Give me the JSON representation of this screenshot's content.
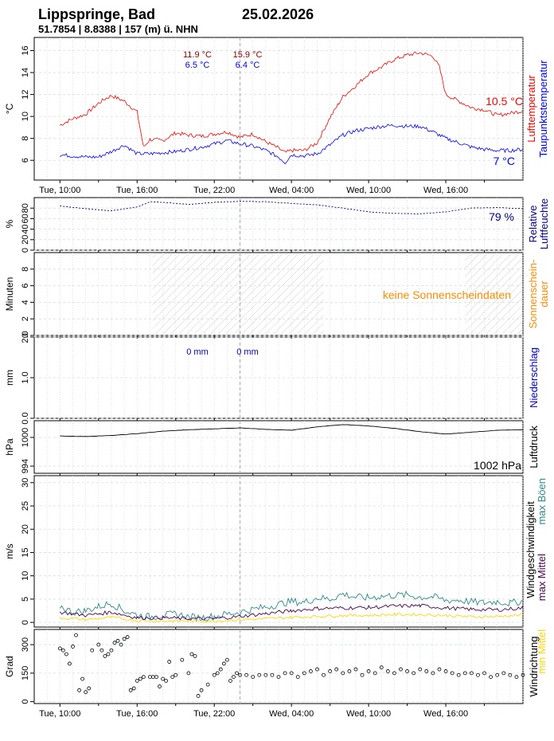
{
  "header": {
    "station": "Lippspringe, Bad",
    "date": "25.02.2026",
    "coords": "51.7854 | 8.8388 | 157 (m) ü. NHN"
  },
  "colors": {
    "temp": "#ff0000",
    "dew": "#0000ff",
    "humidity": "#00008b",
    "sunshine": "#ff8c00",
    "precip": "#0000cd",
    "pressure": "#000000",
    "gust": "#2e8b8b",
    "maxmean": "#4b0050",
    "minmean": "#ffd700",
    "darkred": "#8b0000"
  },
  "x_axis": {
    "ticks": [
      {
        "hour": 0,
        "label": "Tue, 10:00"
      },
      {
        "hour": 6,
        "label": "Tue, 16:00"
      },
      {
        "hour": 12,
        "label": "Tue, 22:00"
      },
      {
        "hour": 18,
        "label": "Wed, 04:00"
      },
      {
        "hour": 24,
        "label": "Wed, 10:00"
      },
      {
        "hour": 30,
        "label": "Wed, 16:00"
      }
    ],
    "hour_range": [
      -2,
      36
    ],
    "midnight_hour": 14
  },
  "chart_data": [
    {
      "type": "line",
      "panel": "temperature",
      "ylabel": "°C",
      "right_labels": [
        "Lufttemperatur",
        "Taupunktstemperatur"
      ],
      "ylim": [
        4.2,
        17.2
      ],
      "yticks": [
        6,
        8,
        10,
        12,
        14,
        16
      ],
      "series": [
        {
          "name": "Lufttemperatur",
          "x": [
            0,
            1,
            2,
            3,
            3.5,
            4,
            5,
            6,
            6.5,
            7,
            8,
            9,
            10,
            11,
            12,
            13,
            14,
            15,
            16,
            17,
            17.5,
            18,
            19,
            20,
            21,
            22,
            23,
            24,
            25,
            26,
            27,
            28,
            29,
            29.5,
            30,
            31,
            32,
            33,
            34,
            35,
            36
          ],
          "values": [
            9.2,
            9.8,
            10.2,
            11.2,
            11.6,
            11.9,
            11.4,
            10.4,
            7.2,
            7.9,
            7.8,
            8.5,
            8.3,
            8.2,
            8.4,
            8.6,
            8.1,
            8.4,
            7.7,
            7.1,
            6.7,
            6.9,
            6.9,
            7.6,
            9.9,
            11.8,
            12.8,
            13.9,
            14.5,
            15.2,
            15.6,
            15.8,
            15.5,
            14.5,
            12.0,
            11.4,
            10.8,
            10.6,
            10.1,
            10.3,
            10.5
          ]
        },
        {
          "name": "Taupunktstemperatur",
          "x": [
            0,
            1,
            2,
            3,
            4,
            5,
            6,
            7,
            8,
            9,
            10,
            11,
            12,
            13,
            14,
            15,
            16,
            17,
            17.5,
            18,
            19,
            20,
            21,
            22,
            23,
            24,
            25,
            26,
            27,
            28,
            29,
            30,
            31,
            32,
            33,
            34,
            35,
            36
          ],
          "values": [
            6.5,
            6.4,
            6.3,
            6.3,
            6.8,
            7.4,
            6.6,
            6.6,
            6.7,
            6.8,
            7.0,
            7.2,
            7.5,
            7.8,
            7.5,
            7.3,
            6.9,
            6.3,
            5.8,
            6.5,
            6.4,
            6.6,
            7.4,
            8.3,
            8.7,
            8.9,
            9.1,
            9.2,
            9.1,
            9.1,
            8.6,
            8.0,
            7.6,
            7.2,
            7.0,
            6.9,
            6.9,
            7.0
          ]
        }
      ],
      "annotations": [
        {
          "text": "11.9 °C",
          "color": "darkred"
        },
        {
          "text": "6.5 °C",
          "color": "dew"
        },
        {
          "text": "15.9 °C",
          "color": "darkred"
        },
        {
          "text": "6.4 °C",
          "color": "dew"
        }
      ],
      "last_values": [
        {
          "text": "10.5 °C",
          "color": "temp"
        },
        {
          "text": "7 °C",
          "color": "dew"
        }
      ]
    },
    {
      "type": "line",
      "panel": "humidity",
      "ylabel": "%",
      "right_labels": [
        "Relative",
        "Luftfeuchte"
      ],
      "ylim": [
        0,
        100
      ],
      "yticks": [
        0,
        20,
        40,
        60,
        80
      ],
      "series": [
        {
          "name": "Relative Luftfeuchte",
          "x": [
            0,
            2,
            4,
            6,
            7,
            8,
            10,
            12,
            14,
            16,
            18,
            20,
            22,
            24,
            26,
            28,
            30,
            32,
            34,
            36
          ],
          "values": [
            84,
            79,
            75,
            82,
            92,
            91,
            87,
            91,
            93,
            92,
            89,
            86,
            80,
            73,
            70,
            69,
            73,
            80,
            81,
            79
          ]
        }
      ],
      "last_value": "79 %"
    },
    {
      "type": "bar",
      "panel": "sunshine",
      "ylabel": "Minuten",
      "right_labels": [
        "Sonnenschein-",
        "dauer"
      ],
      "ylim": [
        0,
        10
      ],
      "yticks": [
        0,
        2,
        4,
        6,
        8
      ],
      "night_ranges": [
        [
          7.2,
          20.5
        ],
        [
          31.5,
          37
        ]
      ],
      "note": "keine Sonnenscheindaten"
    },
    {
      "type": "bar",
      "panel": "precipitation",
      "ylabel": "mm",
      "right_labels": [
        "Niederschlag"
      ],
      "ylim": [
        0,
        2
      ],
      "yticks": [
        0.0,
        1.0,
        2.0
      ],
      "annotations": [
        {
          "text": "0 mm",
          "color": "precip"
        },
        {
          "text": "0 mm",
          "color": "precip"
        }
      ]
    },
    {
      "type": "line",
      "panel": "pressure",
      "ylabel": "hPa",
      "right_labels": [
        "Luftdruck"
      ],
      "ylim": [
        992.5,
        1003.5
      ],
      "yticks": [
        994,
        1000
      ],
      "series": [
        {
          "name": "Luftdruck",
          "x": [
            0,
            2,
            4,
            6,
            8,
            10,
            12,
            14,
            16,
            18,
            20,
            22,
            24,
            26,
            28,
            30,
            32,
            34,
            36
          ],
          "values": [
            1000.3,
            1000.2,
            1000.4,
            1000.8,
            1001.3,
            1001.6,
            1001.8,
            1002.0,
            1001.7,
            1001.5,
            1002.2,
            1002.7,
            1002.4,
            1001.9,
            1001.2,
            1000.7,
            1001.1,
            1001.5,
            1001.6
          ]
        }
      ],
      "last_value": "1002 hPa"
    },
    {
      "type": "line",
      "panel": "wind",
      "ylabel": "m/s",
      "right_labels": [
        "Windgeschwindigkeit",
        "max Mittel",
        "max Böen",
        "min Mittel"
      ],
      "ylim": [
        -1,
        31.5
      ],
      "yticks": [
        0,
        5,
        10,
        15,
        20,
        25,
        30
      ],
      "series": [
        {
          "name": "max Böen",
          "x": [
            0,
            1,
            2,
            3,
            4,
            5,
            6,
            7,
            8,
            9,
            10,
            11,
            12,
            13,
            14,
            15,
            16,
            17,
            18,
            19,
            20,
            21,
            22,
            23,
            24,
            25,
            26,
            27,
            28,
            29,
            30,
            31,
            32,
            33,
            34,
            35,
            36
          ],
          "values": [
            3.5,
            2.2,
            2.5,
            3.4,
            4.1,
            2.5,
            1.6,
            1.2,
            1.5,
            1.8,
            1.2,
            1.0,
            1.3,
            1.8,
            2.2,
            2.8,
            3.3,
            3.9,
            4.5,
            4.3,
            5.3,
            5.0,
            6.1,
            5.4,
            5.3,
            5.6,
            5.8,
            5.9,
            5.4,
            5.5,
            4.7,
            4.8,
            4.4,
            4.2,
            4.5,
            4.1,
            4.6
          ]
        },
        {
          "name": "max Mittel",
          "x": [
            0,
            2,
            4,
            6,
            8,
            10,
            12,
            14,
            16,
            18,
            20,
            22,
            24,
            26,
            28,
            30,
            32,
            34,
            36
          ],
          "values": [
            2.2,
            1.5,
            2.2,
            1.0,
            1.0,
            0.8,
            0.8,
            1.3,
            1.9,
            2.5,
            3.0,
            3.1,
            3.2,
            3.5,
            3.6,
            3.1,
            2.8,
            2.7,
            3.1
          ]
        },
        {
          "name": "min Mittel",
          "x": [
            0,
            2,
            4,
            6,
            8,
            10,
            12,
            14,
            16,
            18,
            20,
            22,
            24,
            26,
            28,
            30,
            32,
            34,
            36
          ],
          "values": [
            1.0,
            0.6,
            1.1,
            0.4,
            0.3,
            0.3,
            0.3,
            0.6,
            0.8,
            1.1,
            1.3,
            1.5,
            1.5,
            1.7,
            1.7,
            1.5,
            1.2,
            1.3,
            1.6
          ]
        }
      ]
    },
    {
      "type": "scatter",
      "panel": "wind_direction",
      "ylabel": "Grad",
      "right_labels": [
        "Windrichtung"
      ],
      "ylim": [
        -10,
        380
      ],
      "yticks": [
        0,
        150,
        300
      ],
      "x": [
        0,
        0.25,
        0.5,
        0.75,
        1,
        1.25,
        1.5,
        1.75,
        2,
        2.25,
        2.5,
        3,
        3.25,
        3.5,
        3.75,
        4,
        4.25,
        4.5,
        4.75,
        5,
        5.25,
        5.5,
        5.75,
        6,
        6.25,
        6.5,
        7,
        7.25,
        7.5,
        7.75,
        8,
        8.25,
        8.5,
        8.75,
        9,
        9.5,
        10,
        10.25,
        10.5,
        10.75,
        11,
        11.5,
        12,
        12.25,
        12.5,
        12.75,
        13,
        13.25,
        13.5,
        13.75,
        14,
        14.5,
        15,
        15.5,
        16,
        16.5,
        17,
        17.5,
        18,
        18.5,
        19,
        19.5,
        20,
        20.5,
        21,
        21.5,
        22,
        22.5,
        23,
        23.5,
        24,
        24.5,
        25,
        25.5,
        26,
        26.5,
        27,
        27.5,
        28,
        28.5,
        29,
        29.5,
        30,
        30.5,
        31,
        31.5,
        32,
        32.5,
        33,
        33.5,
        34,
        34.5,
        35,
        35.5,
        36
      ],
      "values": [
        280,
        270,
        250,
        200,
        290,
        350,
        60,
        120,
        50,
        70,
        270,
        300,
        270,
        240,
        250,
        270,
        310,
        320,
        300,
        330,
        340,
        60,
        70,
        110,
        120,
        130,
        130,
        130,
        130,
        80,
        120,
        110,
        210,
        130,
        140,
        220,
        150,
        250,
        240,
        30,
        60,
        90,
        140,
        150,
        170,
        200,
        220,
        110,
        130,
        150,
        140,
        140,
        130,
        140,
        140,
        140,
        130,
        150,
        150,
        130,
        150,
        160,
        170,
        140,
        160,
        170,
        150,
        160,
        170,
        140,
        160,
        150,
        180,
        160,
        150,
        170,
        160,
        150,
        170,
        160,
        150,
        170,
        160,
        150,
        140,
        150,
        150,
        140,
        150,
        130,
        140,
        150,
        140,
        130,
        140
      ]
    }
  ]
}
